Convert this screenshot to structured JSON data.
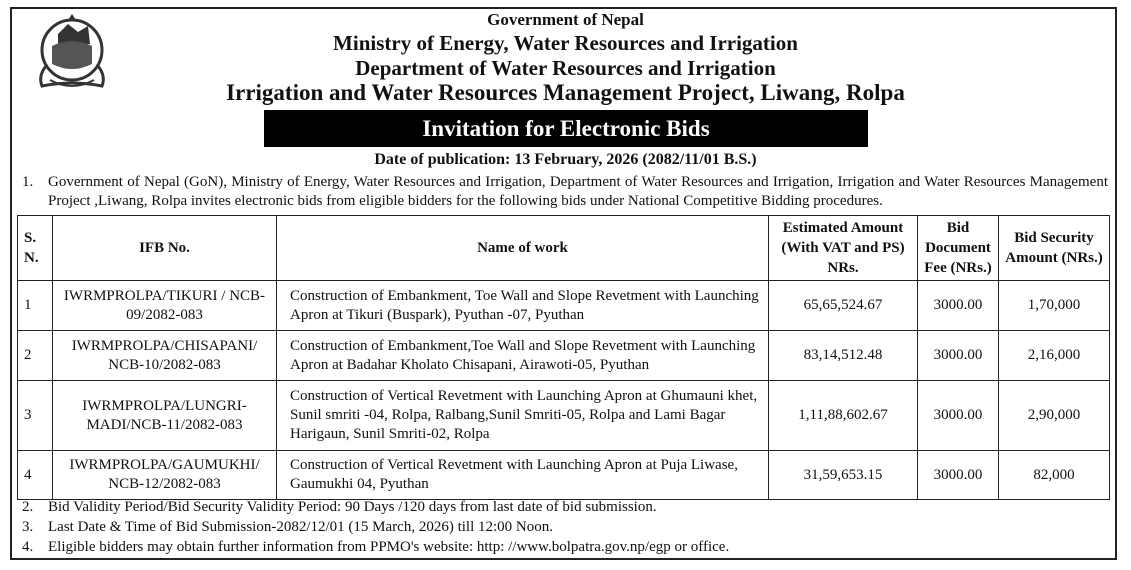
{
  "header": {
    "line1": "Government of Nepal",
    "line2": "Ministry of Energy, Water Resources and Irrigation",
    "line3": "Department of Water Resources and Irrigation",
    "line4": "Irrigation and Water Resources Management Project, Liwang, Rolpa",
    "emblem": "nepal-government-emblem"
  },
  "banner": "Invitation for Electronic Bids",
  "publication_date": "Date of publication: 13 February, 2026 (2082/11/01 B.S.)",
  "intro": {
    "num": "1.",
    "text": "Government of Nepal (GoN), Ministry of Energy, Water Resources and Irrigation, Department of Water Resources and Irrigation, Irrigation and Water Resources Management Project ,Liwang, Rolpa invites electronic bids from eligible bidders for the following bids under National Competitive Bidding procedures."
  },
  "table": {
    "headers": {
      "sn": "S. N.",
      "ifb": "IFB No.",
      "work": "Name of work",
      "amount": "Estimated Amount (With VAT and PS) NRs.",
      "fee": "Bid Document Fee (NRs.)",
      "security": "Bid Security Amount (NRs.)"
    },
    "rows": [
      {
        "sn": "1",
        "ifb": "IWRMPROLPA/TIKURI / NCB-09/2082-083",
        "work": "Construction of Embankment, Toe Wall and Slope Revetment with Launching Apron at Tikuri (Buspark), Pyuthan -07, Pyuthan",
        "amount": "65,65,524.67",
        "fee": "3000.00",
        "security": "1,70,000"
      },
      {
        "sn": "2",
        "ifb": "IWRMPROLPA/CHISAPANI/ NCB-10/2082-083",
        "work": "Construction of Embankment,Toe Wall and Slope Revetment with Launching Apron at Badahar Kholato Chisapani, Airawoti-05, Pyuthan",
        "amount": "83,14,512.48",
        "fee": "3000.00",
        "security": "2,16,000"
      },
      {
        "sn": "3",
        "ifb": "IWRMPROLPA/LUNGRI-MADI/NCB-11/2082-083",
        "work": "Construction of Vertical Revetment with Launching Apron at Ghumauni khet, Sunil smriti -04, Rolpa, Ralbang,Sunil Smriti-05, Rolpa and Lami Bagar Harigaun, Sunil Smriti-02, Rolpa",
        "amount": "1,11,88,602.67",
        "fee": "3000.00",
        "security": "2,90,000"
      },
      {
        "sn": "4",
        "ifb": "IWRMPROLPA/GAUMUKHI/ NCB-12/2082-083",
        "work": "Construction of Vertical Revetment with Launching Apron at Puja Liwase, Gaumukhi 04, Pyuthan",
        "amount": "31,59,653.15",
        "fee": "3000.00",
        "security": "82,000"
      }
    ]
  },
  "notes": [
    {
      "num": "2.",
      "text": "Bid Validity Period/Bid Security Validity Period: 90 Days /120 days from last date of bid submission."
    },
    {
      "num": "3.",
      "text": "Last Date & Time of Bid Submission-2082/12/01 (15 March, 2026) till 12:00 Noon."
    },
    {
      "num": "4.",
      "text": "Eligible bidders may obtain further information from PPMO's website: http: //www.bolpatra.gov.np/egp or office."
    }
  ]
}
